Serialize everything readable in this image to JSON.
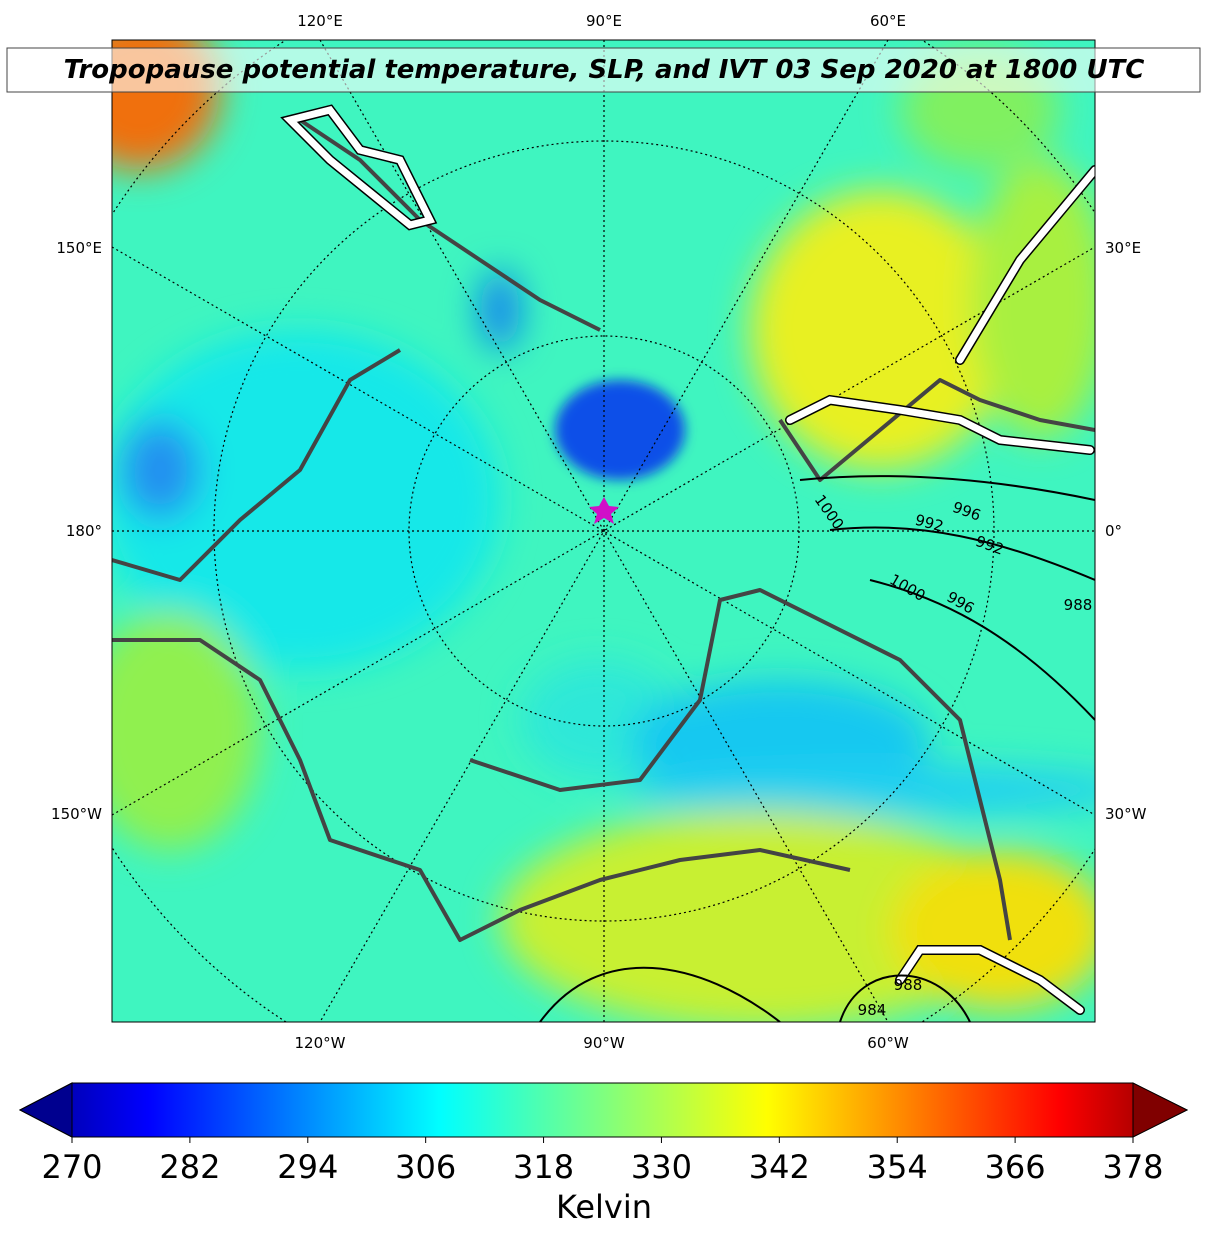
{
  "title": "Tropopause potential temperature, SLP, and IVT 03 Sep 2020 at 1800 UTC",
  "lon_labels": {
    "top": [
      "120°E",
      "90°E",
      "60°E"
    ],
    "left": [
      "150°E",
      "180°",
      "150°W"
    ],
    "right": [
      "30°E",
      "0°",
      "30°W"
    ],
    "bottom": [
      "120°W",
      "90°W",
      "60°W"
    ]
  },
  "contour_labels": [
    996,
    1000,
    992,
    992,
    1000,
    996,
    988,
    988,
    984
  ],
  "colorbar": {
    "lim": [
      270,
      378
    ],
    "ticks": [
      270,
      282,
      294,
      306,
      318,
      330,
      342,
      354,
      366,
      378
    ],
    "label": "Kelvin"
  }
}
